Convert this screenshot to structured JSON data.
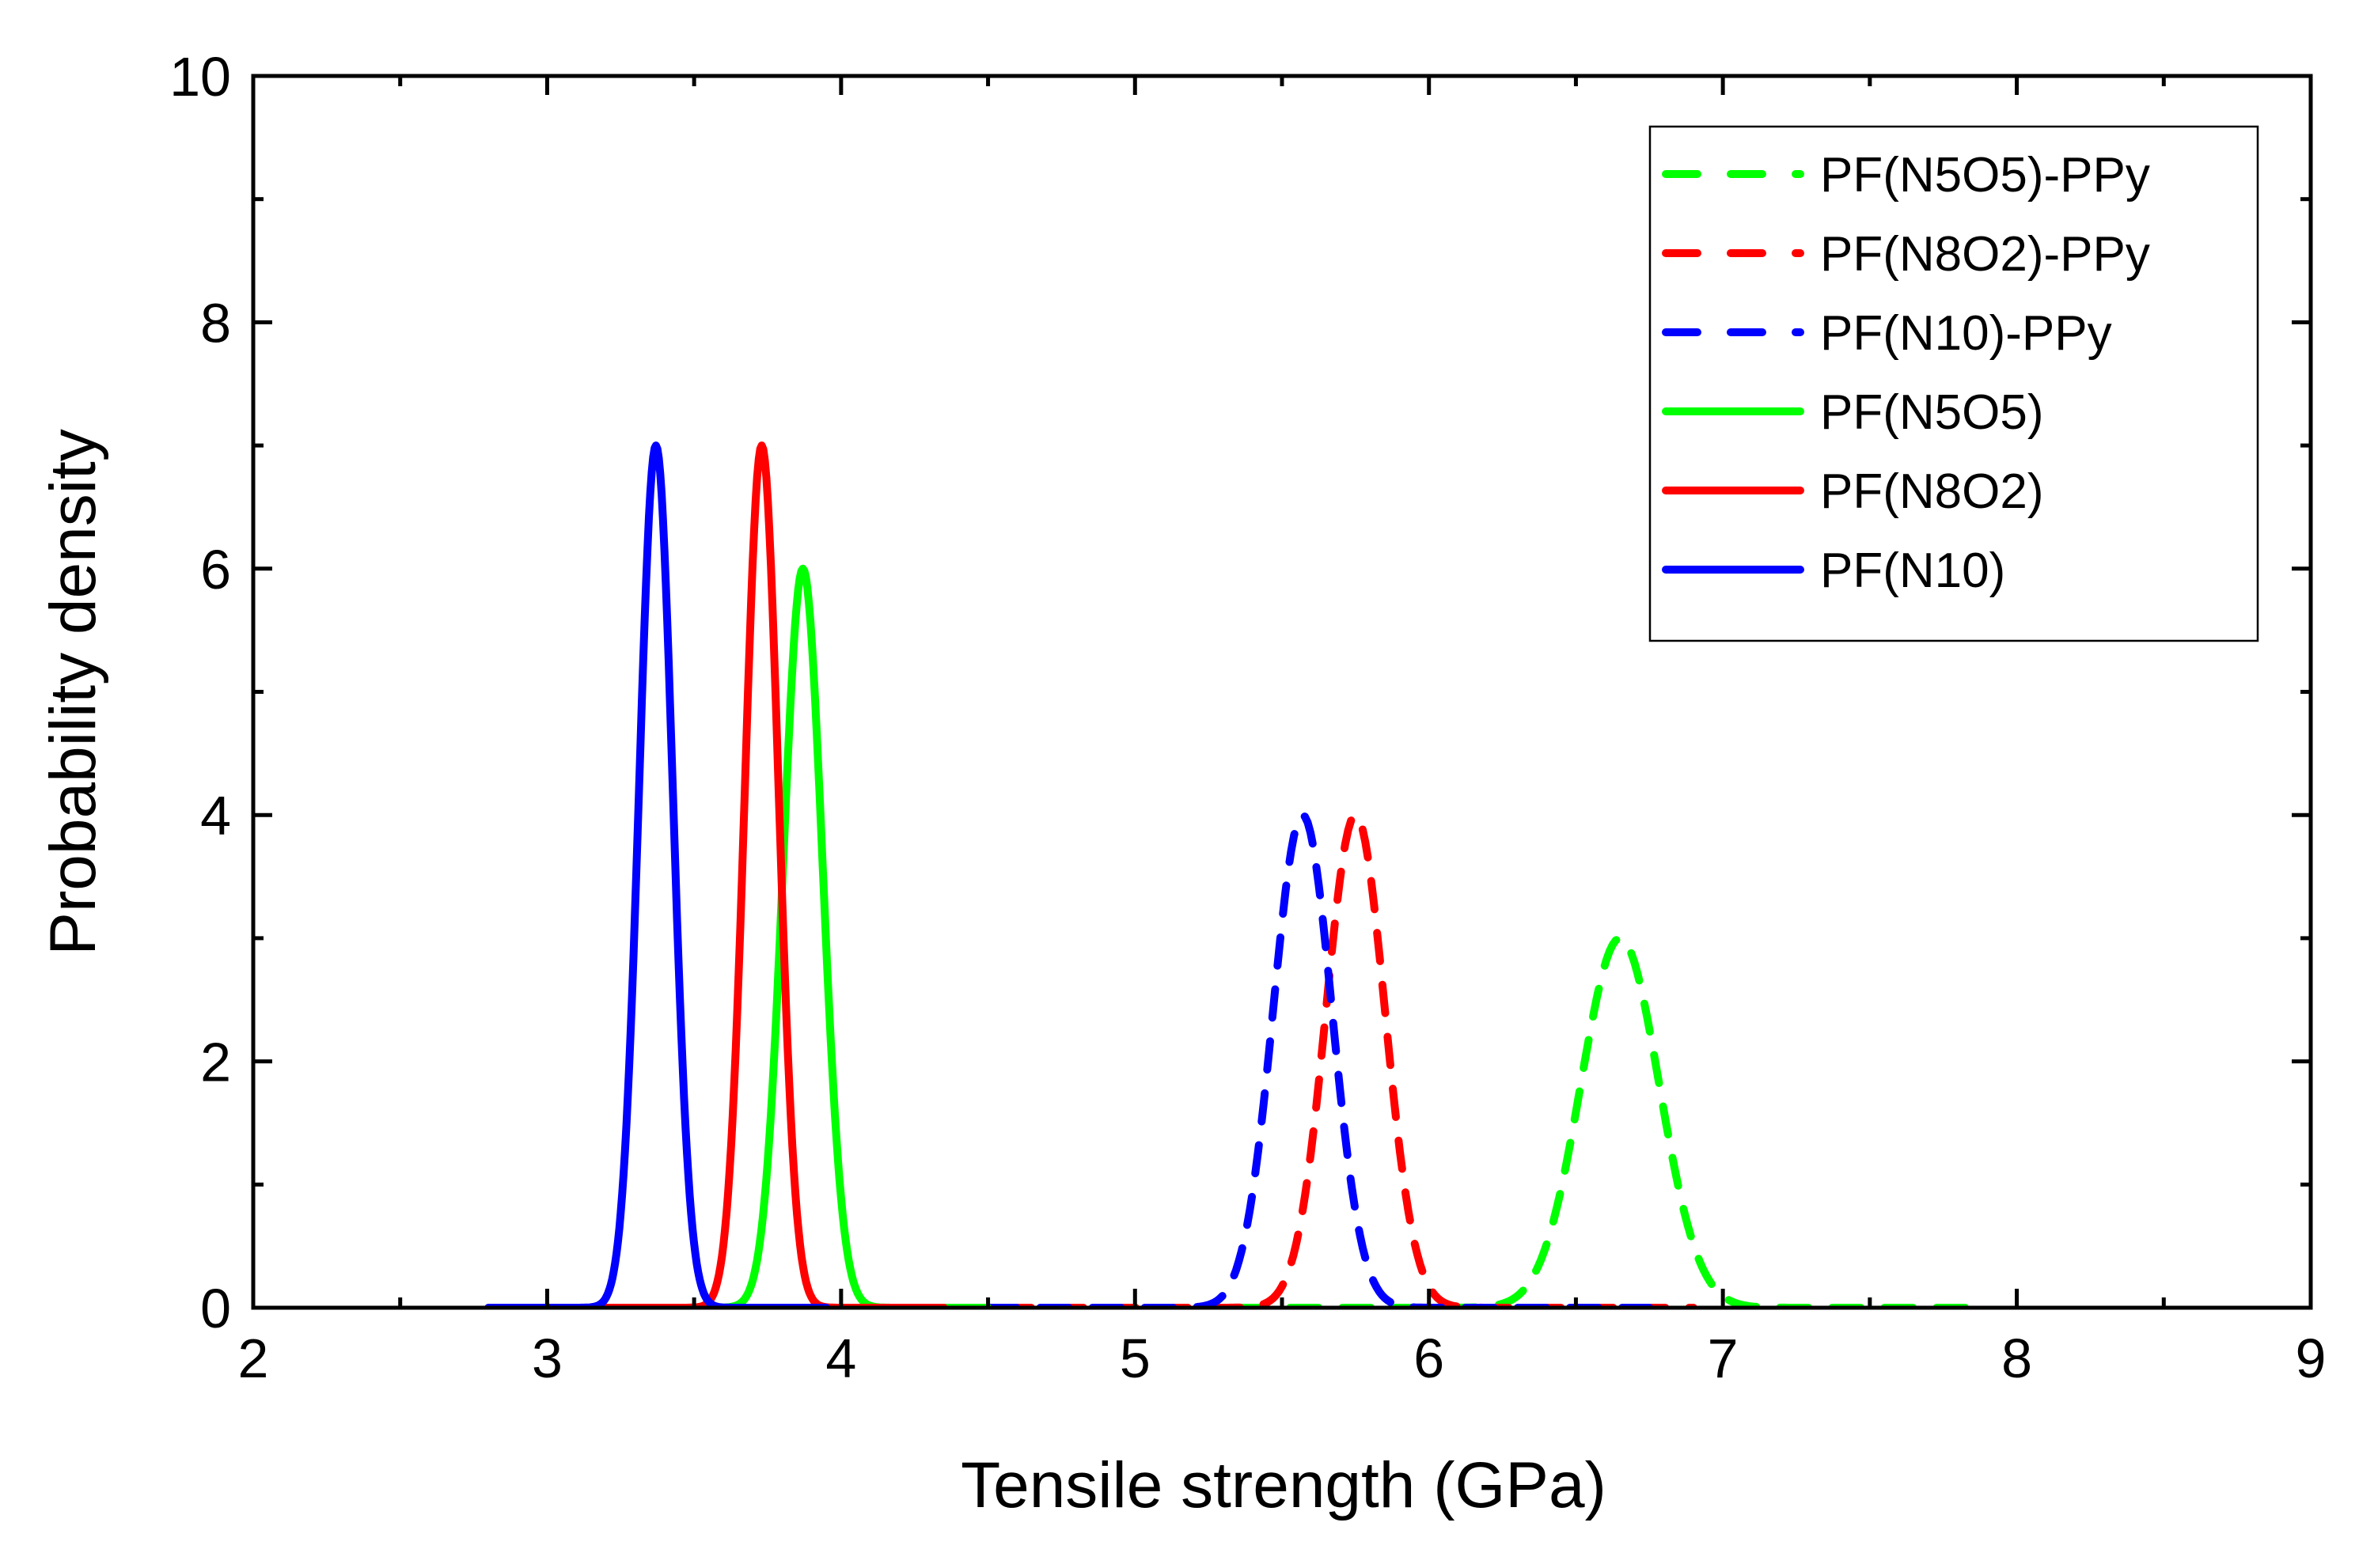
{
  "chart_data": {
    "type": "line",
    "title": "",
    "xlabel": "Tensile strength (GPa)",
    "ylabel": "Probability density",
    "xlim": [
      2,
      9
    ],
    "ylim": [
      0,
      10
    ],
    "xticks": [
      2,
      3,
      4,
      5,
      6,
      7,
      8,
      9
    ],
    "yticks": [
      0,
      2,
      4,
      6,
      8,
      10
    ],
    "grid": false,
    "legend_position": "top-right",
    "series": [
      {
        "name": "PF(N5O5)-PPy",
        "color": "#00ff00",
        "style": "dashed",
        "mean": 6.65,
        "peak": 3.0,
        "x_start": 5.35,
        "x_end": 7.9
      },
      {
        "name": "PF(N8O2)-PPy",
        "color": "#ff0000",
        "style": "dashed",
        "mean": 5.75,
        "peak": 4.0,
        "x_start": 4.55,
        "x_end": 6.9
      },
      {
        "name": "PF(N10)-PPy",
        "color": "#0000ff",
        "style": "dashed",
        "mean": 5.57,
        "peak": 4.0,
        "x_start": 4.5,
        "x_end": 6.75
      },
      {
        "name": "PF(N5O5)",
        "color": "#00ff00",
        "style": "solid",
        "mean": 3.87,
        "peak": 6.0,
        "x_start": 3.25,
        "x_end": 4.5
      },
      {
        "name": "PF(N8O2)",
        "color": "#ff0000",
        "style": "solid",
        "mean": 3.73,
        "peak": 7.0,
        "x_start": 3.1,
        "x_end": 4.35
      },
      {
        "name": "PF(N10)",
        "color": "#0000ff",
        "style": "solid",
        "mean": 3.37,
        "peak": 7.0,
        "x_start": 2.8,
        "x_end": 3.95
      }
    ]
  }
}
